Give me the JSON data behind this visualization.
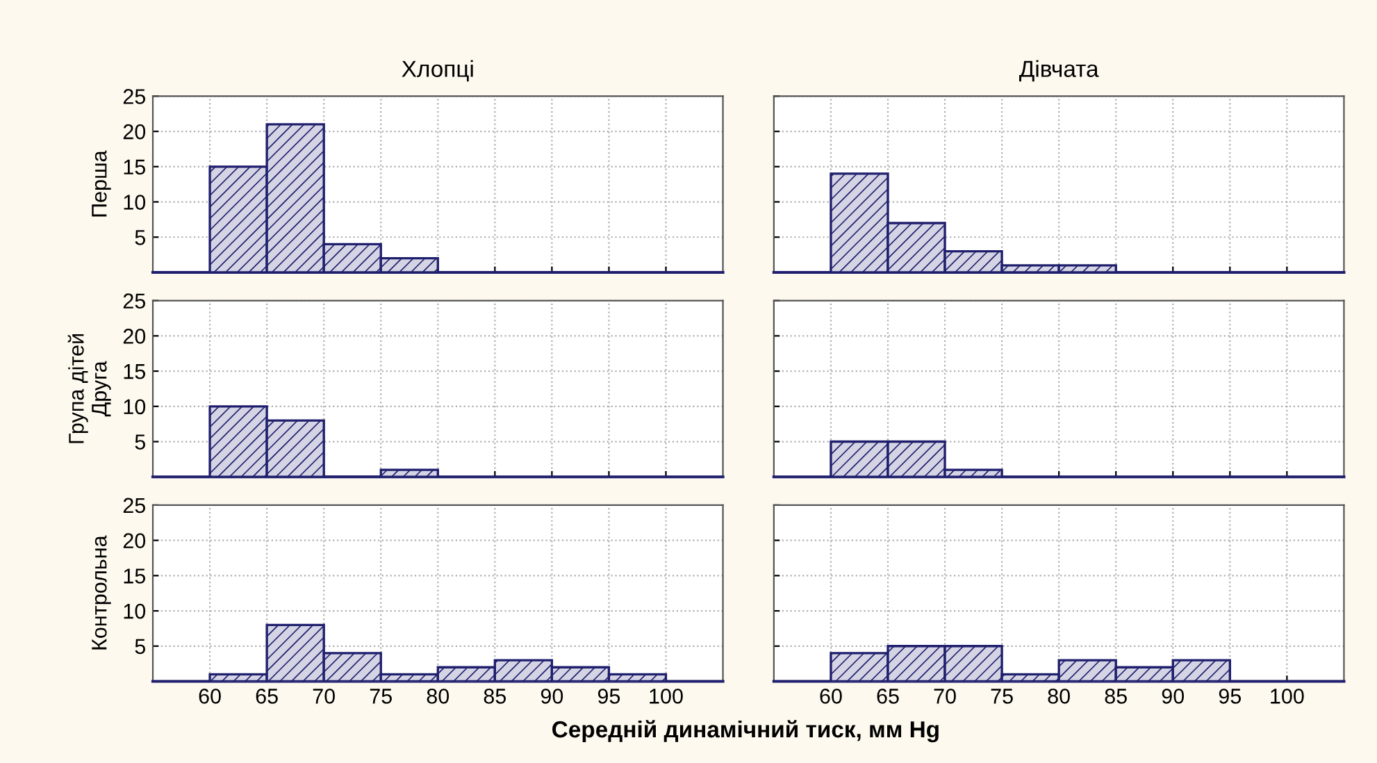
{
  "chart_data": [
    {
      "type": "histogram",
      "title": "Хлопці",
      "ylabel": "Перша",
      "bins": [
        60,
        65,
        70,
        75,
        80
      ],
      "values": [
        15,
        21,
        4,
        2
      ],
      "color": "#1f1f6e",
      "xlim": [
        55,
        105
      ],
      "ylim": [
        0,
        25
      ],
      "xticks": [
        60,
        65,
        70,
        75,
        80,
        85,
        90,
        95,
        100
      ],
      "yticks": [
        5,
        10,
        15,
        20,
        25
      ],
      "grid": true,
      "tick_labels": "y"
    },
    {
      "type": "histogram",
      "title": "Дівчата",
      "bins": [
        60,
        65,
        70,
        75,
        80,
        85
      ],
      "values": [
        14,
        7,
        3,
        1,
        1
      ],
      "color": "#1f1f6e",
      "xlim": [
        55,
        105
      ],
      "ylim": [
        0,
        25
      ],
      "xticks": [
        60,
        65,
        70,
        75,
        80,
        85,
        90,
        95,
        100
      ],
      "yticks": [
        5,
        10,
        15,
        20,
        25
      ],
      "grid": true,
      "tick_labels": false
    },
    {
      "type": "histogram",
      "ylabel": "Група дітей\nДруга",
      "bins": [
        60,
        65,
        70,
        75,
        80
      ],
      "values": [
        10,
        8,
        0,
        1
      ],
      "color": "#1f1f6e",
      "xlim": [
        55,
        105
      ],
      "ylim": [
        0,
        25
      ],
      "xticks": [
        60,
        65,
        70,
        75,
        80,
        85,
        90,
        95,
        100
      ],
      "yticks": [
        5,
        10,
        15,
        20,
        25
      ],
      "grid": true,
      "tick_labels": "y"
    },
    {
      "type": "histogram",
      "bins": [
        60,
        65,
        70,
        75
      ],
      "values": [
        5,
        5,
        1
      ],
      "color": "#1f1f6e",
      "xlim": [
        55,
        105
      ],
      "ylim": [
        0,
        25
      ],
      "xticks": [
        60,
        65,
        70,
        75,
        80,
        85,
        90,
        95,
        100
      ],
      "yticks": [
        5,
        10,
        15,
        20,
        25
      ],
      "grid": true,
      "tick_labels": false
    },
    {
      "type": "histogram",
      "ylabel": "Контрольна",
      "xlabel": "Середній динамічний тиск, мм Hg",
      "bins": [
        60,
        65,
        70,
        75,
        80,
        85,
        90,
        95,
        100
      ],
      "values": [
        1,
        8,
        4,
        1,
        2,
        3,
        2,
        1
      ],
      "color": "#1f1f6e",
      "xlim": [
        55,
        105
      ],
      "ylim": [
        0,
        25
      ],
      "xticks": [
        60,
        65,
        70,
        75,
        80,
        85,
        90,
        95,
        100
      ],
      "yticks": [
        5,
        10,
        15,
        20,
        25
      ],
      "grid": true
    },
    {
      "type": "histogram",
      "bins": [
        60,
        65,
        70,
        75,
        80,
        85,
        90,
        95
      ],
      "values": [
        4,
        5,
        5,
        1,
        3,
        2,
        3
      ],
      "color": "#1f1f6e",
      "xlim": [
        55,
        105
      ],
      "ylim": [
        0,
        25
      ],
      "xticks": [
        60,
        65,
        70,
        75,
        80,
        85,
        90,
        95,
        100
      ],
      "yticks": [
        5,
        10,
        15,
        20,
        25
      ],
      "grid": true,
      "tick_labels": "x"
    }
  ]
}
